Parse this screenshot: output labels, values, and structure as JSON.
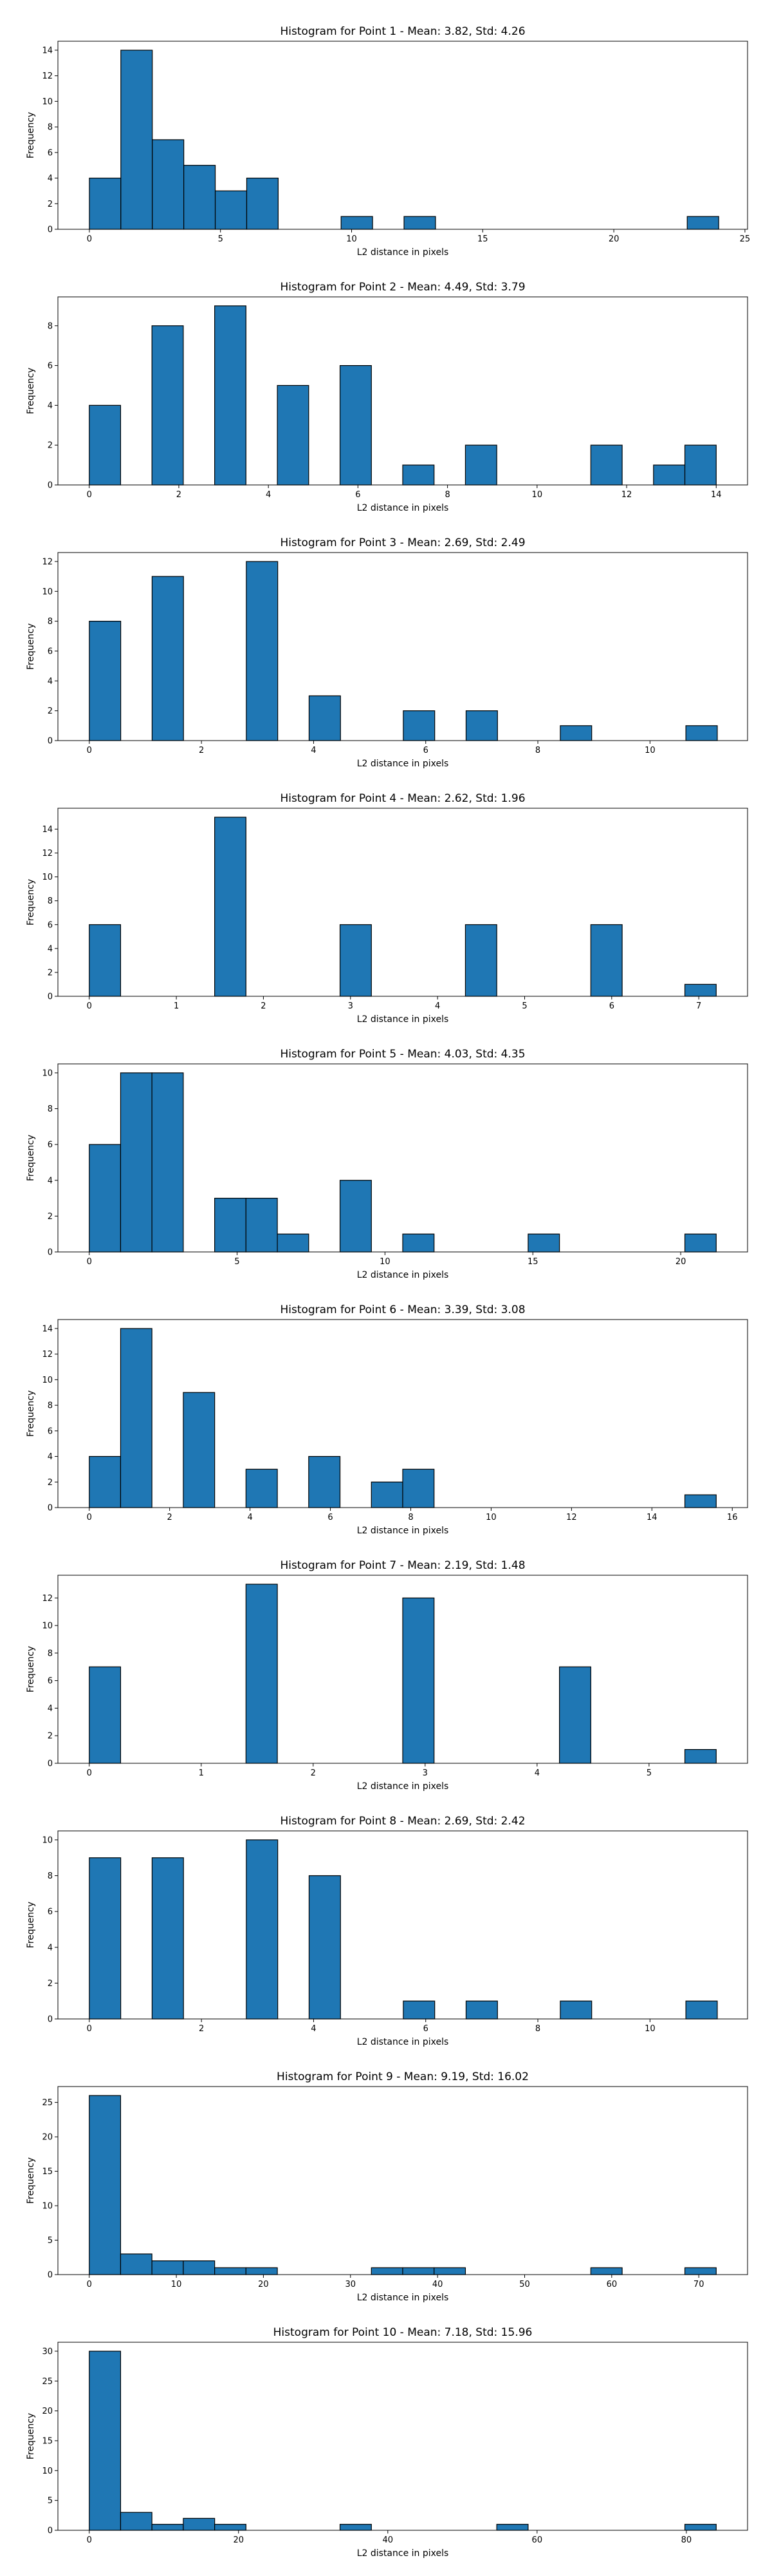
{
  "chart_data": [
    {
      "type": "bar",
      "title": "Histogram for Point 1 - Mean: 3.82, Std: 4.26",
      "xlabel": "L2 distance in pixels",
      "ylabel": "Frequency",
      "bar_color": "#1f77b4",
      "xlim": [
        -1.2,
        25.1
      ],
      "ylim": [
        0,
        14.7
      ],
      "xticks": [
        0,
        5,
        10,
        15,
        20,
        25
      ],
      "yticks": [
        0,
        2,
        4,
        6,
        8,
        10,
        12,
        14
      ],
      "bin_width": 1.2,
      "bins": [
        {
          "x": 0,
          "count": 4
        },
        {
          "x": 1.2,
          "count": 14
        },
        {
          "x": 2.4,
          "count": 7
        },
        {
          "x": 3.6,
          "count": 5
        },
        {
          "x": 4.8,
          "count": 3
        },
        {
          "x": 6.0,
          "count": 4
        },
        {
          "x": 9.6,
          "count": 1
        },
        {
          "x": 12.0,
          "count": 1
        },
        {
          "x": 22.8,
          "count": 1
        }
      ]
    },
    {
      "type": "bar",
      "title": "Histogram for Point 2 - Mean: 4.49, Std: 3.79",
      "xlabel": "L2 distance in pixels",
      "ylabel": "Frequency",
      "bar_color": "#1f77b4",
      "xlim": [
        -0.7,
        14.7
      ],
      "ylim": [
        0,
        9.45
      ],
      "xticks": [
        0,
        2,
        4,
        6,
        8,
        10,
        12,
        14
      ],
      "yticks": [
        0,
        2,
        4,
        6,
        8
      ],
      "bin_width": 0.7,
      "bins": [
        {
          "x": 0,
          "count": 4
        },
        {
          "x": 1.4,
          "count": 8
        },
        {
          "x": 2.8,
          "count": 9
        },
        {
          "x": 4.2,
          "count": 5
        },
        {
          "x": 5.6,
          "count": 6
        },
        {
          "x": 7.0,
          "count": 1
        },
        {
          "x": 8.4,
          "count": 2
        },
        {
          "x": 11.2,
          "count": 2
        },
        {
          "x": 12.6,
          "count": 1
        },
        {
          "x": 13.3,
          "count": 2
        }
      ]
    },
    {
      "type": "bar",
      "title": "Histogram for Point 3 - Mean: 2.69, Std: 2.49",
      "xlabel": "L2 distance in pixels",
      "ylabel": "Frequency",
      "bar_color": "#1f77b4",
      "xlim": [
        -0.56,
        11.74
      ],
      "ylim": [
        0,
        12.6
      ],
      "xticks": [
        0,
        2,
        4,
        6,
        8,
        10
      ],
      "yticks": [
        0,
        2,
        4,
        6,
        8,
        10,
        12
      ],
      "bin_width": 0.56,
      "bins": [
        {
          "x": 0,
          "count": 8
        },
        {
          "x": 1.12,
          "count": 11
        },
        {
          "x": 2.8,
          "count": 12
        },
        {
          "x": 3.92,
          "count": 3
        },
        {
          "x": 5.6,
          "count": 2
        },
        {
          "x": 6.72,
          "count": 2
        },
        {
          "x": 8.4,
          "count": 1
        },
        {
          "x": 10.64,
          "count": 1
        }
      ]
    },
    {
      "type": "bar",
      "title": "Histogram for Point 4 - Mean: 2.62, Std: 1.96",
      "xlabel": "L2 distance in pixels",
      "ylabel": "Frequency",
      "bar_color": "#1f77b4",
      "xlim": [
        -0.36,
        7.56
      ],
      "ylim": [
        0,
        15.75
      ],
      "xticks": [
        0,
        1,
        2,
        3,
        4,
        5,
        6,
        7
      ],
      "yticks": [
        0,
        2,
        4,
        6,
        8,
        10,
        12,
        14
      ],
      "bin_width": 0.36,
      "bins": [
        {
          "x": 0,
          "count": 6
        },
        {
          "x": 1.44,
          "count": 15
        },
        {
          "x": 2.88,
          "count": 6
        },
        {
          "x": 4.32,
          "count": 6
        },
        {
          "x": 5.76,
          "count": 6
        },
        {
          "x": 6.84,
          "count": 1
        }
      ]
    },
    {
      "type": "bar",
      "title": "Histogram for Point 5 - Mean: 4.03, Std: 4.35",
      "xlabel": "L2 distance in pixels",
      "ylabel": "Frequency",
      "bar_color": "#1f77b4",
      "xlim": [
        -1.06,
        22.26
      ],
      "ylim": [
        0,
        10.5
      ],
      "xticks": [
        0,
        5,
        10,
        15,
        20
      ],
      "yticks": [
        0,
        2,
        4,
        6,
        8,
        10
      ],
      "bin_width": 1.06,
      "bins": [
        {
          "x": 0,
          "count": 6
        },
        {
          "x": 1.06,
          "count": 10
        },
        {
          "x": 2.12,
          "count": 10
        },
        {
          "x": 4.24,
          "count": 3
        },
        {
          "x": 5.3,
          "count": 3
        },
        {
          "x": 6.36,
          "count": 1
        },
        {
          "x": 8.48,
          "count": 4
        },
        {
          "x": 10.6,
          "count": 1
        },
        {
          "x": 14.84,
          "count": 1
        },
        {
          "x": 20.14,
          "count": 1
        }
      ]
    },
    {
      "type": "bar",
      "title": "Histogram for Point 6 - Mean: 3.39, Std: 3.08",
      "xlabel": "L2 distance in pixels",
      "ylabel": "Frequency",
      "bar_color": "#1f77b4",
      "xlim": [
        -0.78,
        16.38
      ],
      "ylim": [
        0,
        14.7
      ],
      "xticks": [
        0,
        2,
        4,
        6,
        8,
        10,
        12,
        14,
        16
      ],
      "yticks": [
        0,
        2,
        4,
        6,
        8,
        10,
        12,
        14
      ],
      "bin_width": 0.78,
      "bins": [
        {
          "x": 0,
          "count": 4
        },
        {
          "x": 0.78,
          "count": 14
        },
        {
          "x": 2.34,
          "count": 9
        },
        {
          "x": 3.9,
          "count": 3
        },
        {
          "x": 5.46,
          "count": 4
        },
        {
          "x": 7.02,
          "count": 2
        },
        {
          "x": 7.8,
          "count": 3
        },
        {
          "x": 14.82,
          "count": 1
        }
      ]
    },
    {
      "type": "bar",
      "title": "Histogram for Point 7 - Mean: 2.19, Std: 1.48",
      "xlabel": "L2 distance in pixels",
      "ylabel": "Frequency",
      "bar_color": "#1f77b4",
      "xlim": [
        -0.28,
        5.88
      ],
      "ylim": [
        0,
        13.65
      ],
      "xticks": [
        0,
        1,
        2,
        3,
        4,
        5
      ],
      "yticks": [
        0,
        2,
        4,
        6,
        8,
        10,
        12
      ],
      "bin_width": 0.28,
      "bins": [
        {
          "x": 0,
          "count": 7
        },
        {
          "x": 1.4,
          "count": 13
        },
        {
          "x": 2.8,
          "count": 12
        },
        {
          "x": 4.2,
          "count": 7
        },
        {
          "x": 5.32,
          "count": 1
        }
      ]
    },
    {
      "type": "bar",
      "title": "Histogram for Point 8 - Mean: 2.69, Std: 2.42",
      "xlabel": "L2 distance in pixels",
      "ylabel": "Frequency",
      "bar_color": "#1f77b4",
      "xlim": [
        -0.56,
        11.74
      ],
      "ylim": [
        0,
        10.5
      ],
      "xticks": [
        0,
        2,
        4,
        6,
        8,
        10
      ],
      "yticks": [
        0,
        2,
        4,
        6,
        8,
        10
      ],
      "bin_width": 0.56,
      "bins": [
        {
          "x": 0,
          "count": 9
        },
        {
          "x": 1.12,
          "count": 9
        },
        {
          "x": 2.8,
          "count": 10
        },
        {
          "x": 3.92,
          "count": 8
        },
        {
          "x": 5.6,
          "count": 1
        },
        {
          "x": 6.72,
          "count": 1
        },
        {
          "x": 8.4,
          "count": 1
        },
        {
          "x": 10.64,
          "count": 1
        }
      ]
    },
    {
      "type": "bar",
      "title": "Histogram for Point 9 - Mean: 9.19, Std: 16.02",
      "xlabel": "L2 distance in pixels",
      "ylabel": "Frequency",
      "bar_color": "#1f77b4",
      "xlim": [
        -3.6,
        75.6
      ],
      "ylim": [
        0,
        27.3
      ],
      "xticks": [
        0,
        10,
        20,
        30,
        40,
        50,
        60,
        70
      ],
      "yticks": [
        0,
        5,
        10,
        15,
        20,
        25
      ],
      "bin_width": 3.6,
      "bins": [
        {
          "x": 0,
          "count": 26
        },
        {
          "x": 3.6,
          "count": 3
        },
        {
          "x": 7.2,
          "count": 2
        },
        {
          "x": 10.8,
          "count": 2
        },
        {
          "x": 14.4,
          "count": 1
        },
        {
          "x": 18.0,
          "count": 1
        },
        {
          "x": 32.4,
          "count": 1
        },
        {
          "x": 36.0,
          "count": 1
        },
        {
          "x": 39.6,
          "count": 1
        },
        {
          "x": 57.6,
          "count": 1
        },
        {
          "x": 68.4,
          "count": 1
        }
      ]
    },
    {
      "type": "bar",
      "title": "Histogram for Point 10 - Mean: 7.18, Std: 15.96",
      "xlabel": "L2 distance in pixels",
      "ylabel": "Frequency",
      "bar_color": "#1f77b4",
      "xlim": [
        -4.2,
        88.2
      ],
      "ylim": [
        0,
        31.5
      ],
      "xticks": [
        0,
        20,
        40,
        60,
        80
      ],
      "yticks": [
        0,
        5,
        10,
        15,
        20,
        25,
        30
      ],
      "bin_width": 4.2,
      "bins": [
        {
          "x": 0,
          "count": 30
        },
        {
          "x": 4.2,
          "count": 3
        },
        {
          "x": 8.4,
          "count": 1
        },
        {
          "x": 12.6,
          "count": 2
        },
        {
          "x": 16.8,
          "count": 1
        },
        {
          "x": 33.6,
          "count": 1
        },
        {
          "x": 54.6,
          "count": 1
        },
        {
          "x": 79.8,
          "count": 1
        }
      ]
    }
  ]
}
